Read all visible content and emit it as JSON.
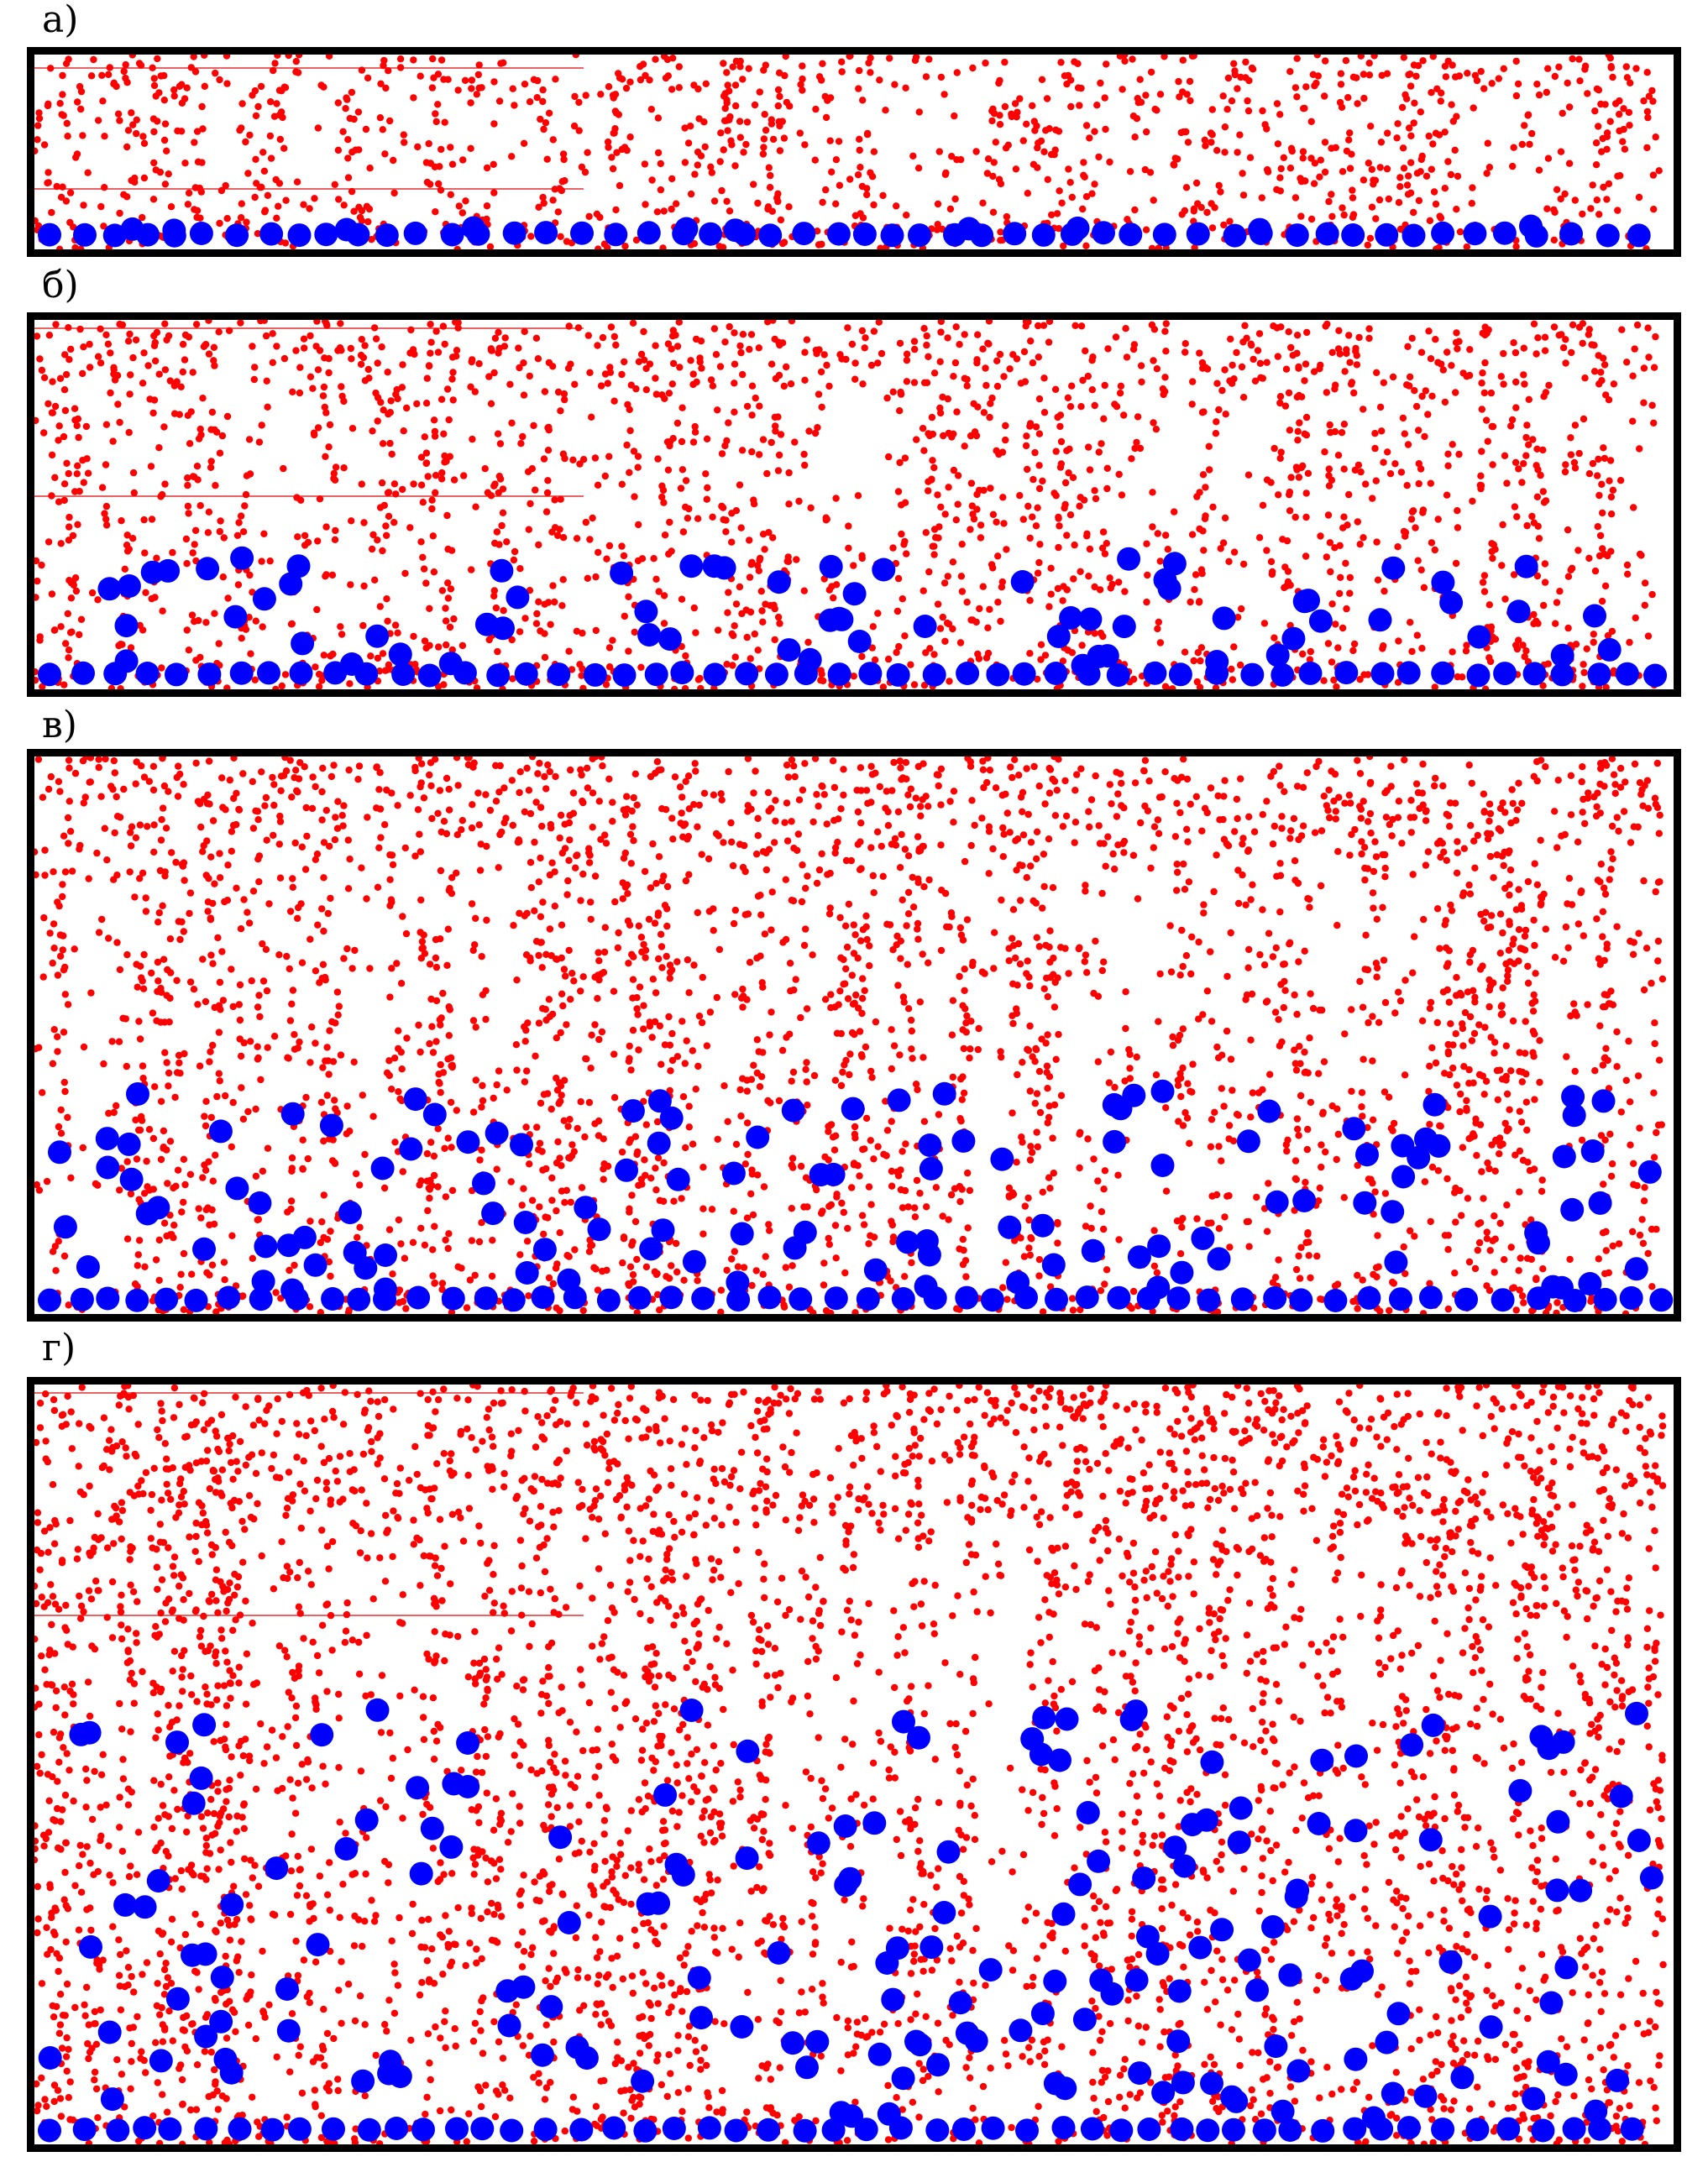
{
  "figure": {
    "colors": {
      "small_particle": "#ff0000",
      "large_particle": "#0000ff",
      "frame": "#000000",
      "guide_line": "#e03030"
    },
    "panels": [
      {
        "label": "а)",
        "red_fill": 0.92,
        "blue_spread": 0.12,
        "large_count": 62,
        "guides": 2
      },
      {
        "label": "б)",
        "red_fill": 0.95,
        "blue_spread": 0.45,
        "large_count": 120,
        "guides": 2
      },
      {
        "label": "в)",
        "red_fill": 0.96,
        "blue_spread": 0.5,
        "large_count": 170,
        "guides": 0
      },
      {
        "label": "г)",
        "red_fill": 0.97,
        "blue_spread": 0.72,
        "large_count": 230,
        "guides": 2
      }
    ]
  }
}
